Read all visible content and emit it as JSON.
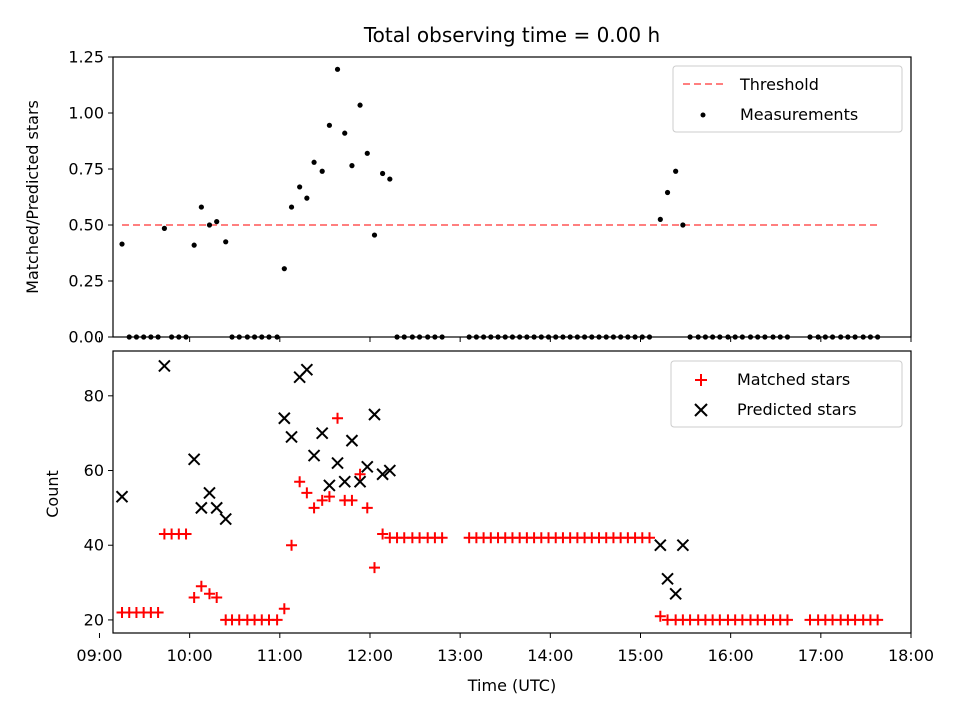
{
  "chart_data": [
    {
      "type": "scatter",
      "title": "Total observing time = 0.00 h",
      "ylabel": "Matched/Predicted stars",
      "xlabel": "",
      "xlim": [
        9.15,
        18.0
      ],
      "ylim": [
        0.0,
        1.25
      ],
      "yticks": [
        "0.00",
        "0.25",
        "0.50",
        "0.75",
        "1.00",
        "1.25"
      ],
      "xticks_shown": false,
      "legend": "top-right",
      "threshold": {
        "name": "Threshold",
        "value": 0.5,
        "x_range": [
          9.25,
          17.65
        ],
        "color": "#ff7f7f",
        "style": "dashed"
      },
      "series": [
        {
          "name": "Measurements",
          "color": "#000000",
          "points": [
            [
              9.25,
              0.415
            ],
            [
              9.72,
              0.485
            ],
            [
              10.05,
              0.41
            ],
            [
              10.13,
              0.58
            ],
            [
              10.22,
              0.5
            ],
            [
              10.3,
              0.515
            ],
            [
              10.4,
              0.425
            ],
            [
              11.05,
              0.305
            ],
            [
              11.13,
              0.58
            ],
            [
              11.22,
              0.67
            ],
            [
              11.3,
              0.62
            ],
            [
              11.38,
              0.78
            ],
            [
              11.47,
              0.74
            ],
            [
              11.55,
              0.945
            ],
            [
              11.64,
              1.195
            ],
            [
              11.72,
              0.91
            ],
            [
              11.8,
              0.765
            ],
            [
              11.89,
              1.035
            ],
            [
              11.97,
              0.82
            ],
            [
              12.05,
              0.455
            ],
            [
              12.14,
              0.73
            ],
            [
              12.22,
              0.705
            ],
            [
              15.22,
              0.525
            ],
            [
              15.3,
              0.645
            ],
            [
              15.39,
              0.74
            ],
            [
              15.47,
              0.5
            ],
            [
              9.33,
              0
            ],
            [
              9.41,
              0
            ],
            [
              9.49,
              0
            ],
            [
              9.57,
              0
            ],
            [
              9.65,
              0
            ],
            [
              9.8,
              0
            ],
            [
              9.88,
              0
            ],
            [
              9.96,
              0
            ],
            [
              10.47,
              0
            ],
            [
              10.55,
              0
            ],
            [
              10.64,
              0
            ],
            [
              10.72,
              0
            ],
            [
              10.8,
              0
            ],
            [
              10.88,
              0
            ],
            [
              10.97,
              0
            ],
            [
              12.3,
              0
            ],
            [
              12.38,
              0
            ],
            [
              12.47,
              0
            ],
            [
              12.55,
              0
            ],
            [
              12.64,
              0
            ],
            [
              12.72,
              0
            ],
            [
              12.8,
              0
            ],
            [
              13.1,
              0
            ],
            [
              13.18,
              0
            ],
            [
              13.26,
              0
            ],
            [
              13.34,
              0
            ],
            [
              13.42,
              0
            ],
            [
              13.5,
              0
            ],
            [
              13.58,
              0
            ],
            [
              13.66,
              0
            ],
            [
              13.74,
              0
            ],
            [
              13.82,
              0
            ],
            [
              13.9,
              0
            ],
            [
              13.98,
              0
            ],
            [
              14.06,
              0
            ],
            [
              14.14,
              0
            ],
            [
              14.22,
              0
            ],
            [
              14.3,
              0
            ],
            [
              14.38,
              0
            ],
            [
              14.46,
              0
            ],
            [
              14.54,
              0
            ],
            [
              14.62,
              0
            ],
            [
              14.7,
              0
            ],
            [
              14.78,
              0
            ],
            [
              14.86,
              0
            ],
            [
              14.94,
              0
            ],
            [
              15.02,
              0
            ],
            [
              15.1,
              0
            ],
            [
              15.55,
              0
            ],
            [
              15.64,
              0
            ],
            [
              15.72,
              0
            ],
            [
              15.8,
              0
            ],
            [
              15.88,
              0
            ],
            [
              15.97,
              0
            ],
            [
              16.05,
              0
            ],
            [
              16.13,
              0
            ],
            [
              16.22,
              0
            ],
            [
              16.3,
              0
            ],
            [
              16.38,
              0
            ],
            [
              16.47,
              0
            ],
            [
              16.55,
              0
            ],
            [
              16.63,
              0
            ],
            [
              16.88,
              0
            ],
            [
              16.97,
              0
            ],
            [
              17.05,
              0
            ],
            [
              17.13,
              0
            ],
            [
              17.22,
              0
            ],
            [
              17.3,
              0
            ],
            [
              17.38,
              0
            ],
            [
              17.47,
              0
            ],
            [
              17.55,
              0
            ],
            [
              17.63,
              0
            ]
          ]
        }
      ]
    },
    {
      "type": "scatter",
      "title": "",
      "xlabel": "Time (UTC)",
      "ylabel": "Count",
      "xlim": [
        9.15,
        18.0
      ],
      "ylim": [
        16.5,
        92
      ],
      "xticks": [
        "09:00",
        "10:00",
        "11:00",
        "12:00",
        "13:00",
        "14:00",
        "15:00",
        "16:00",
        "17:00",
        "18:00"
      ],
      "yticks": [
        "20",
        "40",
        "60",
        "80"
      ],
      "legend": "top-right",
      "series": [
        {
          "name": "Matched stars",
          "color": "#ff0000",
          "marker": "plus",
          "points": [
            [
              9.25,
              22
            ],
            [
              9.33,
              22
            ],
            [
              9.41,
              22
            ],
            [
              9.49,
              22
            ],
            [
              9.57,
              22
            ],
            [
              9.65,
              22
            ],
            [
              9.72,
              43
            ],
            [
              9.8,
              43
            ],
            [
              9.88,
              43
            ],
            [
              9.96,
              43
            ],
            [
              10.05,
              26
            ],
            [
              10.13,
              29
            ],
            [
              10.22,
              27
            ],
            [
              10.3,
              26
            ],
            [
              10.4,
              20
            ],
            [
              10.47,
              20
            ],
            [
              10.55,
              20
            ],
            [
              10.64,
              20
            ],
            [
              10.72,
              20
            ],
            [
              10.8,
              20
            ],
            [
              10.88,
              20
            ],
            [
              10.97,
              20
            ],
            [
              11.05,
              23
            ],
            [
              11.13,
              40
            ],
            [
              11.22,
              57
            ],
            [
              11.3,
              54
            ],
            [
              11.38,
              50
            ],
            [
              11.47,
              52
            ],
            [
              11.55,
              53
            ],
            [
              11.64,
              74
            ],
            [
              11.72,
              52
            ],
            [
              11.8,
              52
            ],
            [
              11.89,
              59
            ],
            [
              11.97,
              50
            ],
            [
              12.05,
              34
            ],
            [
              12.14,
              43
            ],
            [
              12.22,
              42
            ],
            [
              12.3,
              42
            ],
            [
              12.38,
              42
            ],
            [
              12.47,
              42
            ],
            [
              12.55,
              42
            ],
            [
              12.64,
              42
            ],
            [
              12.72,
              42
            ],
            [
              12.8,
              42
            ],
            [
              13.1,
              42
            ],
            [
              13.18,
              42
            ],
            [
              13.26,
              42
            ],
            [
              13.34,
              42
            ],
            [
              13.42,
              42
            ],
            [
              13.5,
              42
            ],
            [
              13.58,
              42
            ],
            [
              13.66,
              42
            ],
            [
              13.74,
              42
            ],
            [
              13.82,
              42
            ],
            [
              13.9,
              42
            ],
            [
              13.98,
              42
            ],
            [
              14.06,
              42
            ],
            [
              14.14,
              42
            ],
            [
              14.22,
              42
            ],
            [
              14.3,
              42
            ],
            [
              14.38,
              42
            ],
            [
              14.46,
              42
            ],
            [
              14.54,
              42
            ],
            [
              14.62,
              42
            ],
            [
              14.7,
              42
            ],
            [
              14.78,
              42
            ],
            [
              14.86,
              42
            ],
            [
              14.94,
              42
            ],
            [
              15.02,
              42
            ],
            [
              15.1,
              42
            ],
            [
              15.22,
              21
            ],
            [
              15.3,
              20
            ],
            [
              15.39,
              20
            ],
            [
              15.47,
              20
            ],
            [
              15.55,
              20
            ],
            [
              15.64,
              20
            ],
            [
              15.72,
              20
            ],
            [
              15.8,
              20
            ],
            [
              15.88,
              20
            ],
            [
              15.97,
              20
            ],
            [
              16.05,
              20
            ],
            [
              16.13,
              20
            ],
            [
              16.22,
              20
            ],
            [
              16.3,
              20
            ],
            [
              16.38,
              20
            ],
            [
              16.47,
              20
            ],
            [
              16.55,
              20
            ],
            [
              16.63,
              20
            ],
            [
              16.88,
              20
            ],
            [
              16.97,
              20
            ],
            [
              17.05,
              20
            ],
            [
              17.13,
              20
            ],
            [
              17.22,
              20
            ],
            [
              17.3,
              20
            ],
            [
              17.38,
              20
            ],
            [
              17.47,
              20
            ],
            [
              17.55,
              20
            ],
            [
              17.63,
              20
            ]
          ]
        },
        {
          "name": "Predicted stars",
          "color": "#000000",
          "marker": "x",
          "points": [
            [
              9.25,
              53
            ],
            [
              9.72,
              88
            ],
            [
              10.05,
              63
            ],
            [
              10.13,
              50
            ],
            [
              10.22,
              54
            ],
            [
              10.3,
              50
            ],
            [
              10.4,
              47
            ],
            [
              11.05,
              74
            ],
            [
              11.13,
              69
            ],
            [
              11.22,
              85
            ],
            [
              11.3,
              87
            ],
            [
              11.38,
              64
            ],
            [
              11.47,
              70
            ],
            [
              11.55,
              56
            ],
            [
              11.64,
              62
            ],
            [
              11.72,
              57
            ],
            [
              11.8,
              68
            ],
            [
              11.89,
              57
            ],
            [
              11.97,
              61
            ],
            [
              12.05,
              75
            ],
            [
              12.14,
              59
            ],
            [
              12.22,
              60
            ],
            [
              15.22,
              40
            ],
            [
              15.3,
              31
            ],
            [
              15.39,
              27
            ],
            [
              15.47,
              40
            ]
          ]
        }
      ]
    }
  ]
}
